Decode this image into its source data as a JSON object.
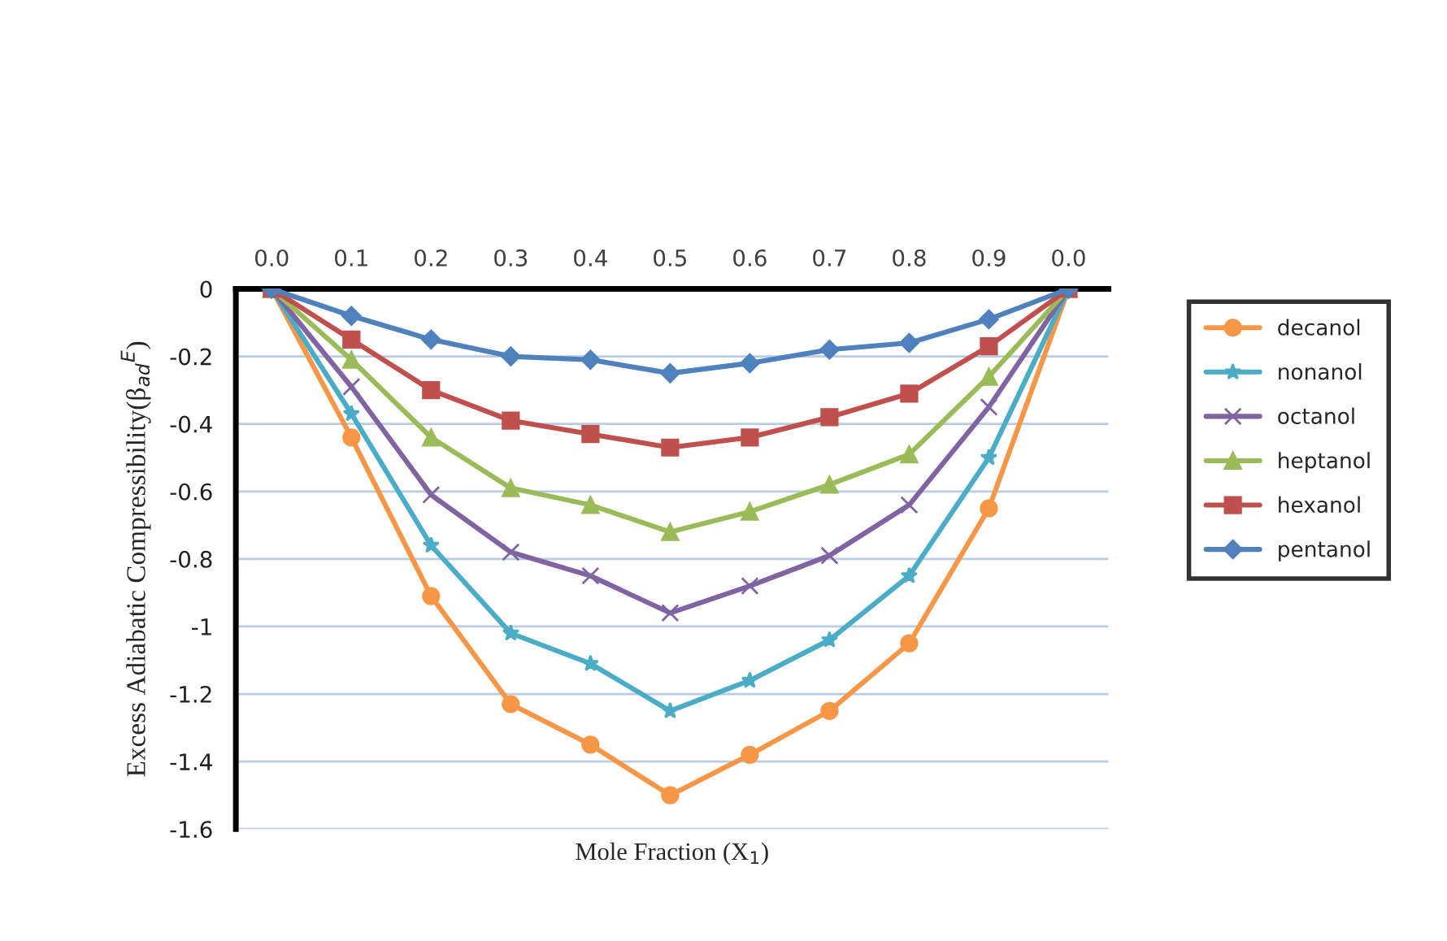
{
  "chart_data": {
    "type": "line",
    "xlabel": "Mole Fraction (X$_{1}$)",
    "ylabel": "Excess Adiabatic Compressibility(β$_{ad}$$^{E}$)",
    "categories": [
      "0.0",
      "0.1",
      "0.2",
      "0.3",
      "0.4",
      "0.5",
      "0.6",
      "0.7",
      "0.8",
      "0.9",
      "0.0"
    ],
    "ylim": [
      -1.6,
      0
    ],
    "yticks": [
      {
        "value": -1.6,
        "label": "-1.6"
      },
      {
        "value": -1.4,
        "label": "-1.4"
      },
      {
        "value": -1.2,
        "label": "-1.2"
      },
      {
        "value": -1,
        "label": "-1"
      },
      {
        "value": -0.8,
        "label": "-0.8"
      },
      {
        "value": -0.6,
        "label": "-0.6"
      },
      {
        "value": -0.4,
        "label": "-0.4"
      },
      {
        "value": -0.2,
        "label": "-0.2"
      },
      {
        "value": 0,
        "label": "0"
      }
    ],
    "grid": "y",
    "legend": "right",
    "line_style": "solid",
    "series": [
      {
        "name": "decanol",
        "color": "#f79646",
        "marker": "circle",
        "values": [
          0,
          -0.44,
          -0.91,
          -1.23,
          -1.35,
          -1.5,
          -1.38,
          -1.25,
          -1.05,
          -0.65,
          0
        ]
      },
      {
        "name": "nonanol",
        "color": "#4bacc6",
        "marker": "star",
        "values": [
          0,
          -0.37,
          -0.76,
          -1.02,
          -1.11,
          -1.25,
          -1.16,
          -1.04,
          -0.85,
          -0.5,
          0
        ]
      },
      {
        "name": "octanol",
        "color": "#8064a2",
        "marker": "cross",
        "values": [
          0,
          -0.29,
          -0.61,
          -0.78,
          -0.85,
          -0.96,
          -0.88,
          -0.79,
          -0.64,
          -0.35,
          0
        ]
      },
      {
        "name": "heptanol",
        "color": "#9bbb59",
        "marker": "triangle",
        "values": [
          0,
          -0.21,
          -0.44,
          -0.59,
          -0.64,
          -0.72,
          -0.66,
          -0.58,
          -0.49,
          -0.26,
          0
        ]
      },
      {
        "name": "hexanol",
        "color": "#c0504d",
        "marker": "square",
        "values": [
          0,
          -0.15,
          -0.3,
          -0.39,
          -0.43,
          -0.47,
          -0.44,
          -0.38,
          -0.31,
          -0.17,
          0
        ]
      },
      {
        "name": "pentanol",
        "color": "#4f81bd",
        "marker": "diamond",
        "values": [
          0,
          -0.08,
          -0.15,
          -0.2,
          -0.21,
          -0.25,
          -0.22,
          -0.18,
          -0.16,
          -0.09,
          0
        ]
      }
    ]
  }
}
